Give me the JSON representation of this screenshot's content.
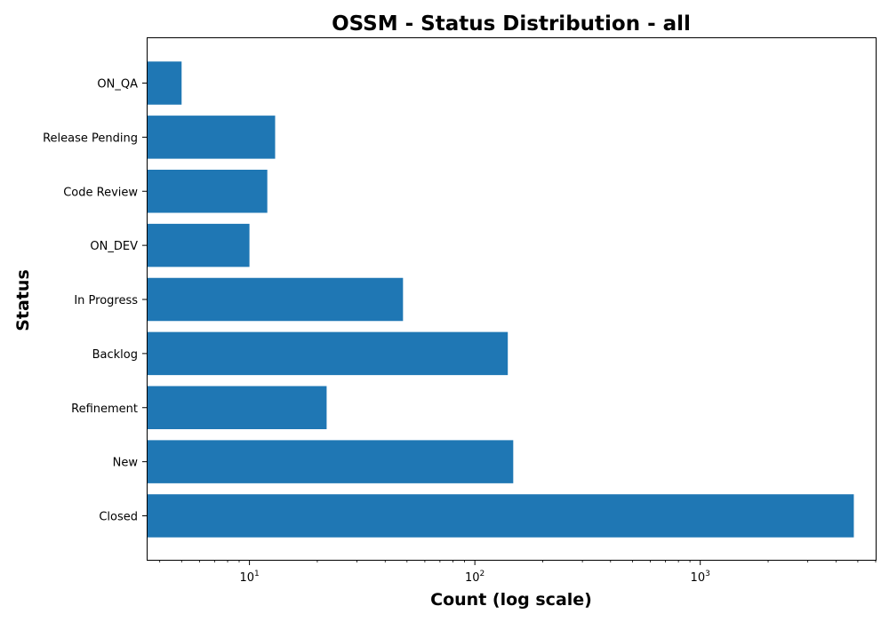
{
  "chart_data": {
    "type": "bar",
    "orientation": "horizontal",
    "title": "OSSM - Status Distribution - all",
    "xlabel": "Count (log scale)",
    "ylabel": "Status",
    "x_scale": "log",
    "xlim": [
      3.5,
      6000
    ],
    "x_ticks": [
      {
        "value": 10,
        "base": "10",
        "exp": "1"
      },
      {
        "value": 100,
        "base": "10",
        "exp": "2"
      },
      {
        "value": 1000,
        "base": "10",
        "exp": "3"
      }
    ],
    "categories": [
      "ON_QA",
      "Release Pending",
      "Code Review",
      "ON_DEV",
      "In Progress",
      "Backlog",
      "Refinement",
      "New",
      "Closed"
    ],
    "values": [
      5,
      13,
      12,
      10,
      48,
      140,
      22,
      148,
      4800
    ],
    "bar_color": "#1f77b4",
    "grid": false,
    "legend": "none"
  }
}
